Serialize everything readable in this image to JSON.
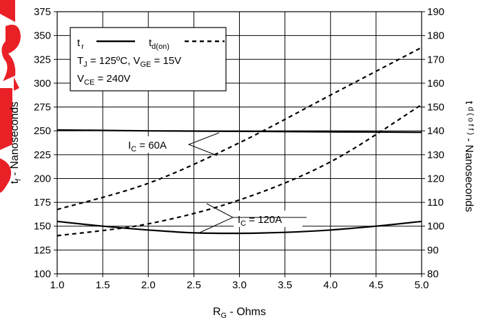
{
  "chart_data": {
    "type": "line",
    "x_axis": {
      "label_main": "R",
      "label_sub": "G",
      "label_rest": " - Ohms",
      "range": [
        1.0,
        5.0
      ],
      "ticks": [
        "1.0",
        "1.5",
        "2.0",
        "2.5",
        "3.0",
        "3.5",
        "4.0",
        "4.5",
        "5.0"
      ]
    },
    "y_left": {
      "label_main": "t",
      "label_sub": "f",
      "label_rest": " - Nanoseconds",
      "range": [
        100,
        375
      ],
      "ticks": [
        "100",
        "125",
        "150",
        "175",
        "200",
        "225",
        "250",
        "275",
        "300",
        "325",
        "350",
        "375"
      ]
    },
    "y_right": {
      "label_main": "t",
      "label_sub": "d ( o f f )",
      "label_rest": " - Nanoseconds",
      "range": [
        80,
        190
      ],
      "ticks": [
        "80",
        "90",
        "100",
        "110",
        "120",
        "130",
        "140",
        "150",
        "160",
        "170",
        "180",
        "190"
      ]
    },
    "grid": true,
    "legend": {
      "placement": "top-left",
      "solid_main": "t",
      "solid_sub": "r",
      "dashed_main": "t",
      "dashed_sub": "d(on)",
      "cond1_a": "T",
      "cond1_a_sub": "J",
      "cond1_b": " = 125ºC,  V",
      "cond1_b_sub": "GE",
      "cond1_c": " = 15V",
      "cond2_a": "V",
      "cond2_a_sub": "CE",
      "cond2_b": " = 240V"
    },
    "annotations": {
      "ic60_main": "I",
      "ic60_sub": "C",
      "ic60_rest": " = 60A",
      "ic120_main": "I",
      "ic120_sub": "C",
      "ic120_rest": " = 120A"
    },
    "series": [
      {
        "axis": "left",
        "style": "solid",
        "x": [
          1.0,
          2.0,
          3.0,
          4.0,
          5.0
        ],
        "y": [
          251,
          250,
          249.5,
          249,
          248.5
        ]
      },
      {
        "axis": "left",
        "style": "solid",
        "x": [
          1.0,
          1.5,
          2.0,
          2.5,
          3.0,
          3.5,
          4.0,
          4.5,
          5.0
        ],
        "y": [
          155,
          150,
          146,
          143,
          142.5,
          143.5,
          146,
          150,
          155
        ]
      },
      {
        "axis": "right",
        "style": "dashed",
        "x": [
          1.0,
          2.0,
          3.0,
          4.0,
          5.0
        ],
        "y": [
          107,
          118,
          135,
          155,
          175
        ]
      },
      {
        "axis": "right",
        "style": "dashed",
        "x": [
          1.0,
          2.0,
          3.0,
          4.0,
          5.0
        ],
        "y": [
          96,
          101,
          111,
          127,
          151
        ]
      }
    ],
    "colors": {
      "axis": "#000000",
      "grid": "#000000",
      "line": "#000000",
      "watermark": "#e8151b"
    }
  }
}
